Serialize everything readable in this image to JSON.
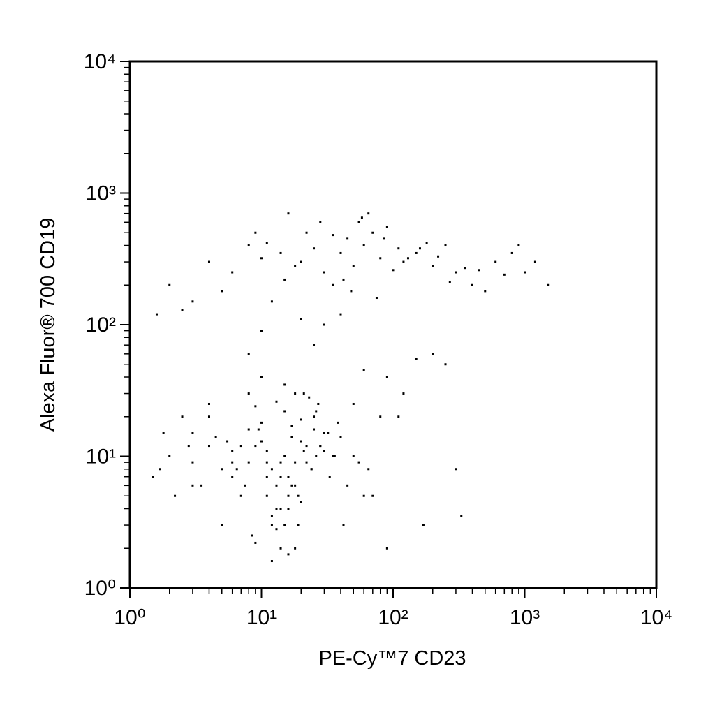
{
  "chart_data": {
    "type": "scatter",
    "xlabel": "PE-Cy™7 CD23",
    "ylabel": "Alexa Fluor® 700 CD19",
    "xscale": "log",
    "yscale": "log",
    "xlim": [
      1,
      10000
    ],
    "ylim": [
      1,
      10000
    ],
    "xticks": [
      {
        "value": 1,
        "label": "10⁰"
      },
      {
        "value": 10,
        "label": "10¹"
      },
      {
        "value": 100,
        "label": "10²"
      },
      {
        "value": 1000,
        "label": "10³"
      },
      {
        "value": 10000,
        "label": "10⁴"
      }
    ],
    "yticks": [
      {
        "value": 1,
        "label": "10⁰"
      },
      {
        "value": 10,
        "label": "10¹"
      },
      {
        "value": 100,
        "label": "10²"
      },
      {
        "value": 1000,
        "label": "10³"
      },
      {
        "value": 10000,
        "label": "10⁴"
      }
    ],
    "grid": false,
    "color": "#000000",
    "x": [
      12,
      15,
      18,
      9,
      22,
      30,
      7,
      14,
      11,
      25,
      16,
      8,
      20,
      13,
      35,
      10,
      6,
      19,
      27,
      17,
      4,
      5,
      3,
      2.5,
      45,
      50,
      12,
      14,
      16,
      18,
      21,
      9.5,
      11,
      13,
      24,
      28,
      33,
      40,
      8.5,
      7.5,
      15,
      17,
      19,
      23,
      26,
      12,
      10,
      14,
      16,
      20,
      2,
      3.5,
      4.5,
      6.5,
      55,
      60,
      38,
      42,
      13,
      15,
      11,
      9,
      22,
      18,
      25,
      30,
      6,
      5.5,
      12,
      16,
      1.5,
      1.8,
      2.2,
      3,
      4,
      5,
      7,
      8,
      9,
      10,
      14,
      17,
      20,
      24,
      28,
      32,
      36,
      13,
      11,
      15,
      18,
      21,
      26,
      8,
      6,
      4,
      3,
      2.8,
      1.7,
      65,
      20,
      30,
      40,
      50,
      60,
      80,
      100,
      15,
      25,
      35,
      45,
      70,
      120,
      150,
      200,
      300,
      400,
      500,
      10,
      8,
      12,
      18,
      55,
      65,
      90,
      250,
      600,
      800,
      1000,
      1500,
      6,
      5,
      4,
      3,
      2.5,
      2,
      1.6,
      35,
      28,
      22,
      42,
      75,
      110,
      180,
      220,
      350,
      700,
      1200,
      16,
      14,
      9,
      11,
      48,
      58,
      85,
      130,
      160,
      270,
      450,
      900,
      8,
      10,
      25,
      40,
      60,
      90,
      120,
      150,
      200,
      300,
      50,
      80,
      170,
      250,
      330,
      110,
      70,
      30,
      20,
      90
    ],
    "y": [
      8,
      10,
      6,
      12,
      9,
      15,
      5,
      7,
      11,
      20,
      4,
      9,
      13,
      6,
      10,
      18,
      7,
      3,
      25,
      14,
      12,
      8,
      15,
      20,
      6,
      10,
      3,
      2,
      5,
      30,
      11,
      16,
      9,
      4,
      8,
      12,
      7,
      14,
      2.5,
      6,
      22,
      17,
      5,
      28,
      10,
      3.5,
      13,
      9,
      7,
      4.5,
      10,
      6,
      14,
      8,
      9,
      5,
      18,
      3,
      26,
      35,
      7,
      24,
      12,
      2,
      16,
      11,
      9,
      13,
      1.6,
      1.8,
      7,
      15,
      5,
      9,
      20,
      3,
      12,
      30,
      2.2,
      40,
      4,
      6,
      19,
      8,
      12,
      15,
      10,
      2.8,
      5,
      3,
      9,
      30,
      22,
      16,
      11,
      25,
      6,
      12,
      8,
      8,
      300,
      250,
      350,
      280,
      400,
      320,
      260,
      220,
      380,
      200,
      450,
      500,
      300,
      350,
      280,
      250,
      200,
      180,
      320,
      400,
      150,
      280,
      600,
      700,
      550,
      400,
      300,
      350,
      250,
      200,
      250,
      180,
      300,
      150,
      130,
      200,
      120,
      480,
      600,
      500,
      220,
      160,
      380,
      420,
      330,
      270,
      240,
      300,
      700,
      350,
      500,
      420,
      180,
      650,
      450,
      320,
      380,
      210,
      260,
      400,
      60,
      90,
      70,
      120,
      45,
      40,
      30,
      55,
      60,
      8,
      25,
      20,
      3,
      50,
      3.5,
      20,
      5,
      100,
      110,
      2
    ]
  }
}
